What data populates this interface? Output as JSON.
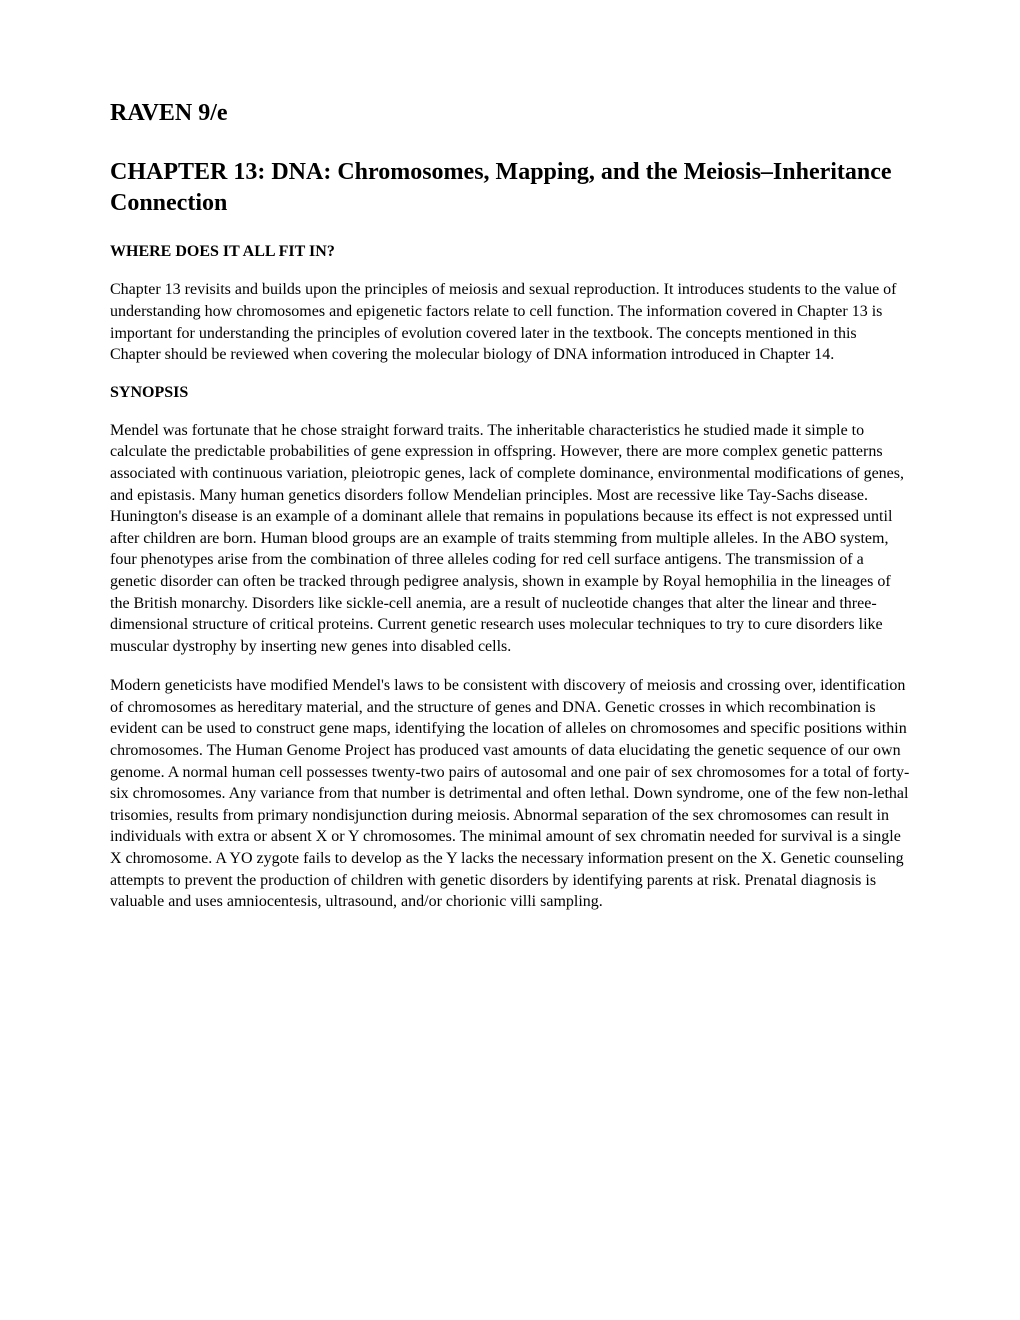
{
  "book_title": "RAVEN 9/e",
  "chapter_title": "CHAPTER 13: DNA: Chromosomes, Mapping, and the Meiosis–Inheritance Connection",
  "section1": {
    "heading": "WHERE DOES IT ALL FIT IN?",
    "paragraph": "Chapter 13 revisits and builds upon the principles of meiosis and sexual reproduction.  It introduces students to the value of understanding how chromosomes and epigenetic factors relate to cell function. The information covered in Chapter 13 is important for understanding the principles of evolution covered later in the textbook. The concepts mentioned in this Chapter should be reviewed when covering the molecular biology of DNA information introduced in Chapter 14."
  },
  "section2": {
    "heading": "SYNOPSIS",
    "paragraph1": "Mendel was fortunate that he chose straight forward traits. The inheritable characteristics he studied made it simple to calculate the predictable probabilities of gene expression in offspring. However, there are more complex genetic patterns associated with continuous variation, pleiotropic genes, lack of complete dominance, environmental modifications of genes, and epistasis. Many human genetics disorders follow Mendelian principles. Most are recessive like Tay-Sachs disease. Hunington's disease is an example of a dominant allele that remains in populations because its effect is not expressed until after children are born. Human blood groups are an example of traits stemming from multiple alleles. In the ABO system, four phenotypes arise from the combination of three alleles coding for red cell surface antigens. The transmission of a genetic disorder can often be tracked through pedigree analysis, shown in example by Royal hemophilia in the lineages of the British monarchy. Disorders like sickle-cell anemia, are a result of nucleotide changes that alter the linear and three-dimensional structure of critical proteins. Current genetic research uses molecular techniques to try to cure disorders like muscular dystrophy by inserting new genes into disabled cells.",
    "paragraph2": "Modern geneticists have modified Mendel's laws to be consistent with discovery of meiosis and crossing over, identification of chromosomes as hereditary material, and the structure of genes and DNA. Genetic crosses in which recombination is evident can be used to construct gene maps, identifying the location of alleles on chromosomes and specific positions within chromosomes. The Human Genome Project has produced vast amounts of data elucidating the genetic sequence of our own genome. A normal human cell possesses twenty-two pairs of autosomal and one pair of sex chromosomes for a total of forty-six chromosomes. Any variance from that number is detrimental and often lethal. Down syndrome, one of the few non-lethal trisomies, results from primary nondisjunction during meiosis. Abnormal separation of the sex chromosomes can result in individuals with extra or absent X or Y chromosomes. The minimal amount of sex chromatin needed for survival is a single X chromosome. A YO zygote fails to develop as the Y lacks the necessary information present on the X. Genetic counseling attempts to prevent the production of children with genetic disorders by identifying parents at risk. Prenatal diagnosis is valuable and uses amniocentesis, ultrasound, and/or chorionic villi sampling."
  },
  "colors": {
    "text": "#000000",
    "background": "#ffffff"
  },
  "typography": {
    "body_font": "Times New Roman",
    "body_size": 16,
    "title_size": 24,
    "heading_size": 16
  }
}
